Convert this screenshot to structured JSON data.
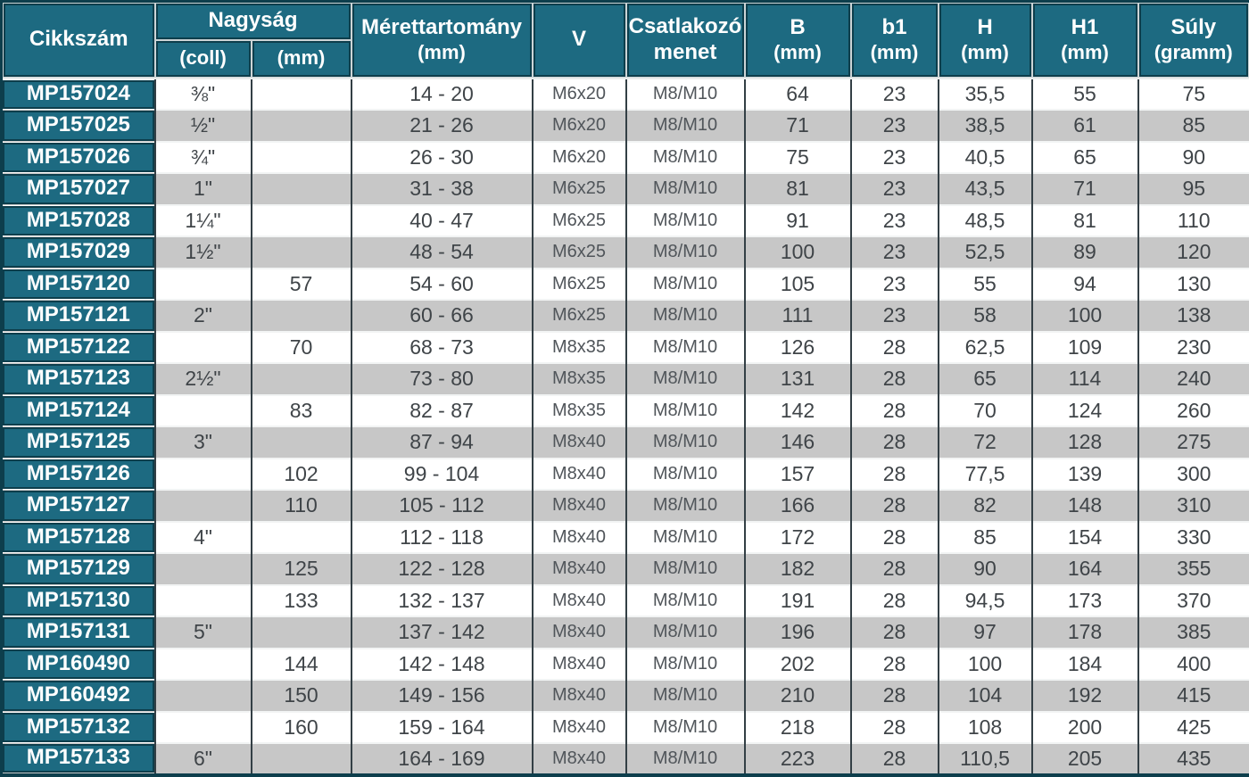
{
  "colors": {
    "header_teal": "#1d6a81",
    "border_dark": "#0d3e4c",
    "grid_line": "#333f45",
    "stripe_gray": "#c7c7c7",
    "stripe_white": "#ffffff",
    "header_gap_light": "#ccd4d6",
    "data_text": "#3f4448",
    "header_text": "#ffffff"
  },
  "table": {
    "header": {
      "cikkszam": "Cikkszám",
      "nagysag": "Nagyság",
      "nagysag_coll": "(coll)",
      "nagysag_mm": "(mm)",
      "merettartomany": "Mérettartomány",
      "merettartomany_unit": "(mm)",
      "v": "V",
      "csatlakozo_line1": "Csatlakozó",
      "csatlakozo_line2": "menet",
      "b": "B",
      "b_unit": "(mm)",
      "b1": "b1",
      "b1_unit": "(mm)",
      "h": "H",
      "h_unit": "(mm)",
      "h1": "H1",
      "h1_unit": "(mm)",
      "suly": "Súly",
      "suly_unit": "(gramm)"
    },
    "rows": [
      [
        "MP157024",
        "⅜\"",
        "",
        "14 - 20",
        "M6x20",
        "M8/M10",
        "64",
        "23",
        "35,5",
        "55",
        "75"
      ],
      [
        "MP157025",
        "½\"",
        "",
        "21 - 26",
        "M6x20",
        "M8/M10",
        "71",
        "23",
        "38,5",
        "61",
        "85"
      ],
      [
        "MP157026",
        "¾\"",
        "",
        "26 - 30",
        "M6x20",
        "M8/M10",
        "75",
        "23",
        "40,5",
        "65",
        "90"
      ],
      [
        "MP157027",
        "1\"",
        "",
        "31 - 38",
        "M6x25",
        "M8/M10",
        "81",
        "23",
        "43,5",
        "71",
        "95"
      ],
      [
        "MP157028",
        "1¼\"",
        "",
        "40 - 47",
        "M6x25",
        "M8/M10",
        "91",
        "23",
        "48,5",
        "81",
        "110"
      ],
      [
        "MP157029",
        "1½\"",
        "",
        "48 - 54",
        "M6x25",
        "M8/M10",
        "100",
        "23",
        "52,5",
        "89",
        "120"
      ],
      [
        "MP157120",
        "",
        "57",
        "54 - 60",
        "M6x25",
        "M8/M10",
        "105",
        "23",
        "55",
        "94",
        "130"
      ],
      [
        "MP157121",
        "2\"",
        "",
        "60 - 66",
        "M6x25",
        "M8/M10",
        "111",
        "23",
        "58",
        "100",
        "138"
      ],
      [
        "MP157122",
        "",
        "70",
        "68 - 73",
        "M8x35",
        "M8/M10",
        "126",
        "28",
        "62,5",
        "109",
        "230"
      ],
      [
        "MP157123",
        "2½\"",
        "",
        "73 - 80",
        "M8x35",
        "M8/M10",
        "131",
        "28",
        "65",
        "114",
        "240"
      ],
      [
        "MP157124",
        "",
        "83",
        "82 - 87",
        "M8x35",
        "M8/M10",
        "142",
        "28",
        "70",
        "124",
        "260"
      ],
      [
        "MP157125",
        "3\"",
        "",
        "87 - 94",
        "M8x40",
        "M8/M10",
        "146",
        "28",
        "72",
        "128",
        "275"
      ],
      [
        "MP157126",
        "",
        "102",
        "99 - 104",
        "M8x40",
        "M8/M10",
        "157",
        "28",
        "77,5",
        "139",
        "300"
      ],
      [
        "MP157127",
        "",
        "110",
        "105 - 112",
        "M8x40",
        "M8/M10",
        "166",
        "28",
        "82",
        "148",
        "310"
      ],
      [
        "MP157128",
        "4\"",
        "",
        "112 - 118",
        "M8x40",
        "M8/M10",
        "172",
        "28",
        "85",
        "154",
        "330"
      ],
      [
        "MP157129",
        "",
        "125",
        "122 - 128",
        "M8x40",
        "M8/M10",
        "182",
        "28",
        "90",
        "164",
        "355"
      ],
      [
        "MP157130",
        "",
        "133",
        "132 - 137",
        "M8x40",
        "M8/M10",
        "191",
        "28",
        "94,5",
        "173",
        "370"
      ],
      [
        "MP157131",
        "5\"",
        "",
        "137 - 142",
        "M8x40",
        "M8/M10",
        "196",
        "28",
        "97",
        "178",
        "385"
      ],
      [
        "MP160490",
        "",
        "144",
        "142 - 148",
        "M8x40",
        "M8/M10",
        "202",
        "28",
        "100",
        "184",
        "400"
      ],
      [
        "MP160492",
        "",
        "150",
        "149 - 156",
        "M8x40",
        "M8/M10",
        "210",
        "28",
        "104",
        "192",
        "415"
      ],
      [
        "MP157132",
        "",
        "160",
        "159 - 164",
        "M8x40",
        "M8/M10",
        "218",
        "28",
        "108",
        "200",
        "425"
      ],
      [
        "MP157133",
        "6\"",
        "",
        "164 - 169",
        "M8x40",
        "M8/M10",
        "223",
        "28",
        "110,5",
        "205",
        "435"
      ]
    ]
  }
}
